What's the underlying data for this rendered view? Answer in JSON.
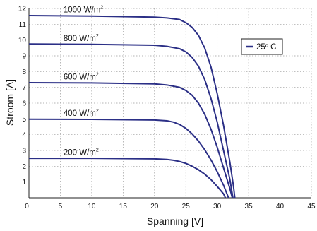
{
  "chart_data": {
    "type": "line",
    "title": "",
    "xlabel": "Spanning [V]",
    "ylabel": "Stroom [A]",
    "xlim": [
      0,
      45
    ],
    "ylim": [
      0,
      12
    ],
    "xticks": [
      "0",
      "5",
      "10",
      "15",
      "20",
      "25",
      "30",
      "35",
      "40",
      "45"
    ],
    "yticks": [
      "1",
      "2",
      "3",
      "4",
      "5",
      "6",
      "7",
      "8",
      "9",
      "10",
      "11",
      "12"
    ],
    "grid": true,
    "legend": {
      "placement": "top-right",
      "label": "25º C"
    },
    "line_color": "#2b2f86",
    "series": [
      {
        "label_text": "1000 W/m",
        "label_sup": "2",
        "points": [
          [
            0,
            11.55
          ],
          [
            10,
            11.52
          ],
          [
            20,
            11.45
          ],
          [
            22,
            11.4
          ],
          [
            24,
            11.3
          ],
          [
            25,
            11.1
          ],
          [
            26,
            10.8
          ],
          [
            27,
            10.3
          ],
          [
            28,
            9.5
          ],
          [
            29,
            8.3
          ],
          [
            30,
            6.6
          ],
          [
            31,
            4.6
          ],
          [
            32,
            2.3
          ],
          [
            32.6,
            0.7
          ],
          [
            32.8,
            0
          ]
        ]
      },
      {
        "label_text": "800 W/m",
        "label_sup": "2",
        "points": [
          [
            0,
            9.75
          ],
          [
            10,
            9.73
          ],
          [
            20,
            9.67
          ],
          [
            22,
            9.6
          ],
          [
            24,
            9.45
          ],
          [
            25,
            9.25
          ],
          [
            26,
            8.9
          ],
          [
            27,
            8.35
          ],
          [
            28,
            7.5
          ],
          [
            29,
            6.3
          ],
          [
            30,
            4.8
          ],
          [
            31,
            3.0
          ],
          [
            32,
            1.2
          ],
          [
            32.5,
            0
          ]
        ]
      },
      {
        "label_text": "600 W/m",
        "label_sup": "2",
        "points": [
          [
            0,
            7.3
          ],
          [
            10,
            7.28
          ],
          [
            20,
            7.22
          ],
          [
            22,
            7.15
          ],
          [
            24,
            7.0
          ],
          [
            25,
            6.8
          ],
          [
            26,
            6.5
          ],
          [
            27,
            6.0
          ],
          [
            28,
            5.3
          ],
          [
            29,
            4.35
          ],
          [
            30,
            3.2
          ],
          [
            31,
            1.9
          ],
          [
            32,
            0.6
          ],
          [
            32.4,
            0
          ]
        ]
      },
      {
        "label_text": "400 W/m",
        "label_sup": "2",
        "points": [
          [
            0,
            4.98
          ],
          [
            10,
            4.97
          ],
          [
            20,
            4.93
          ],
          [
            22,
            4.88
          ],
          [
            23,
            4.8
          ],
          [
            24,
            4.65
          ],
          [
            25,
            4.4
          ],
          [
            26,
            4.05
          ],
          [
            27,
            3.6
          ],
          [
            28,
            3.05
          ],
          [
            29,
            2.4
          ],
          [
            30,
            1.65
          ],
          [
            31,
            0.8
          ],
          [
            31.8,
            0
          ]
        ]
      },
      {
        "label_text": "200 W/m",
        "label_sup": "2",
        "points": [
          [
            0,
            2.5
          ],
          [
            10,
            2.5
          ],
          [
            20,
            2.47
          ],
          [
            22,
            2.43
          ],
          [
            23,
            2.38
          ],
          [
            24,
            2.3
          ],
          [
            25,
            2.18
          ],
          [
            26,
            2.0
          ],
          [
            27,
            1.78
          ],
          [
            28,
            1.5
          ],
          [
            29,
            1.15
          ],
          [
            30,
            0.72
          ],
          [
            31,
            0.25
          ],
          [
            31.3,
            0
          ]
        ]
      }
    ],
    "label_positions": [
      [
        5.5,
        11.75
      ],
      [
        5.5,
        9.95
      ],
      [
        5.5,
        7.5
      ],
      [
        5.5,
        5.2
      ],
      [
        5.5,
        2.7
      ]
    ]
  }
}
